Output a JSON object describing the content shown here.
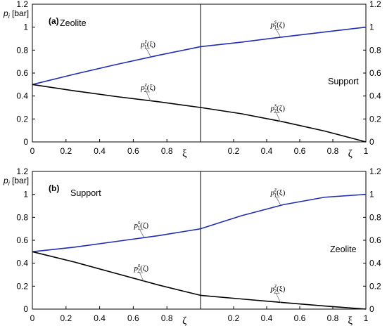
{
  "chart_data": [
    {
      "type": "line",
      "panel_label": "(a)",
      "ylabel": "p_i [bar]",
      "ylim": [
        0,
        1.2
      ],
      "yticks": [
        0,
        0.2,
        0.4,
        0.6,
        0.8,
        1,
        1.2
      ],
      "yticks_right": [
        0,
        0.2,
        0.4,
        0.6,
        0.8,
        1,
        1.2
      ],
      "left_region": {
        "label": "Zeolite",
        "xsymbol": "ξ",
        "xlim": [
          0,
          1
        ],
        "xticks": [
          0,
          0.2,
          0.4,
          0.6,
          0.8
        ]
      },
      "right_region": {
        "label": "Support",
        "xsymbol": "ζ",
        "xlim": [
          0,
          1
        ],
        "xticks": [
          0.2,
          0.4,
          0.6,
          0.8,
          1
        ]
      },
      "series": [
        {
          "name": "p1z(ξ)",
          "region": "left",
          "color": "#1f2db5",
          "x": [
            0,
            0.25,
            0.5,
            0.75,
            1
          ],
          "y": [
            0.5,
            0.59,
            0.675,
            0.755,
            0.83
          ],
          "annotation": {
            "base": "p",
            "sub": "1",
            "sup": "z",
            "arg": "(ξ)",
            "x": 0.72
          }
        },
        {
          "name": "p2z(ξ)",
          "region": "left",
          "color": "#000000",
          "x": [
            0,
            0.25,
            0.5,
            0.75,
            1
          ],
          "y": [
            0.5,
            0.445,
            0.395,
            0.35,
            0.3
          ],
          "annotation": {
            "base": "p",
            "sub": "2",
            "sup": "z",
            "arg": "(ξ)",
            "x": 0.72
          }
        },
        {
          "name": "p1s(ζ)",
          "region": "right",
          "color": "#1f2db5",
          "x": [
            0,
            0.25,
            0.5,
            0.75,
            1
          ],
          "y": [
            0.83,
            0.87,
            0.915,
            0.958,
            1.0
          ],
          "annotation": {
            "base": "p",
            "sub": "1",
            "sup": "s",
            "arg": "(ζ)",
            "x": 0.5
          }
        },
        {
          "name": "p2s(ζ)",
          "region": "right",
          "color": "#000000",
          "x": [
            0,
            0.25,
            0.5,
            0.75,
            1
          ],
          "y": [
            0.3,
            0.245,
            0.175,
            0.095,
            0.0
          ],
          "annotation": {
            "base": "p",
            "sub": "2",
            "sup": "s",
            "arg": "(ζ)",
            "x": 0.5
          }
        }
      ]
    },
    {
      "type": "line",
      "panel_label": "(b)",
      "ylabel": "p_i [bar]",
      "ylim": [
        0,
        1.2
      ],
      "yticks": [
        0,
        0.2,
        0.4,
        0.6,
        0.8,
        1,
        1.2
      ],
      "yticks_right": [
        0,
        0.2,
        0.4,
        0.6,
        0.8,
        1,
        1.2
      ],
      "left_region": {
        "label": "Support",
        "xsymbol": "ζ",
        "xlim": [
          0,
          1
        ],
        "xticks": [
          0,
          0.2,
          0.4,
          0.6,
          0.8
        ]
      },
      "right_region": {
        "label": "Zeolite",
        "xsymbol": "ξ",
        "xlim": [
          0,
          1
        ],
        "xticks": [
          0.2,
          0.4,
          0.6,
          0.8,
          1
        ]
      },
      "series": [
        {
          "name": "p1s(ζ)",
          "region": "left",
          "color": "#1f2db5",
          "x": [
            0,
            0.25,
            0.5,
            0.75,
            1
          ],
          "y": [
            0.5,
            0.54,
            0.59,
            0.64,
            0.7
          ],
          "annotation": {
            "base": "p",
            "sub": "1",
            "sup": "s",
            "arg": "(ζ)",
            "x": 0.68
          }
        },
        {
          "name": "p2s(ζ)",
          "region": "left",
          "color": "#000000",
          "x": [
            0,
            0.25,
            0.5,
            0.75,
            1
          ],
          "y": [
            0.5,
            0.41,
            0.31,
            0.21,
            0.12
          ],
          "annotation": {
            "base": "p",
            "sub": "2",
            "sup": "s",
            "arg": "(ζ)",
            "x": 0.68
          }
        },
        {
          "name": "p1z(ξ)",
          "region": "right",
          "color": "#1f2db5",
          "x": [
            0,
            0.25,
            0.5,
            0.75,
            1
          ],
          "y": [
            0.7,
            0.815,
            0.91,
            0.975,
            1.0
          ],
          "annotation": {
            "base": "p",
            "sub": "1",
            "sup": "z",
            "arg": "(ξ)",
            "x": 0.5
          }
        },
        {
          "name": "p2z(ξ)",
          "region": "right",
          "color": "#000000",
          "x": [
            0,
            0.25,
            0.5,
            0.75,
            1
          ],
          "y": [
            0.12,
            0.088,
            0.057,
            0.027,
            0.0
          ],
          "annotation": {
            "base": "p",
            "sub": "2",
            "sup": "z",
            "arg": "(ξ)",
            "x": 0.5
          }
        }
      ]
    }
  ]
}
